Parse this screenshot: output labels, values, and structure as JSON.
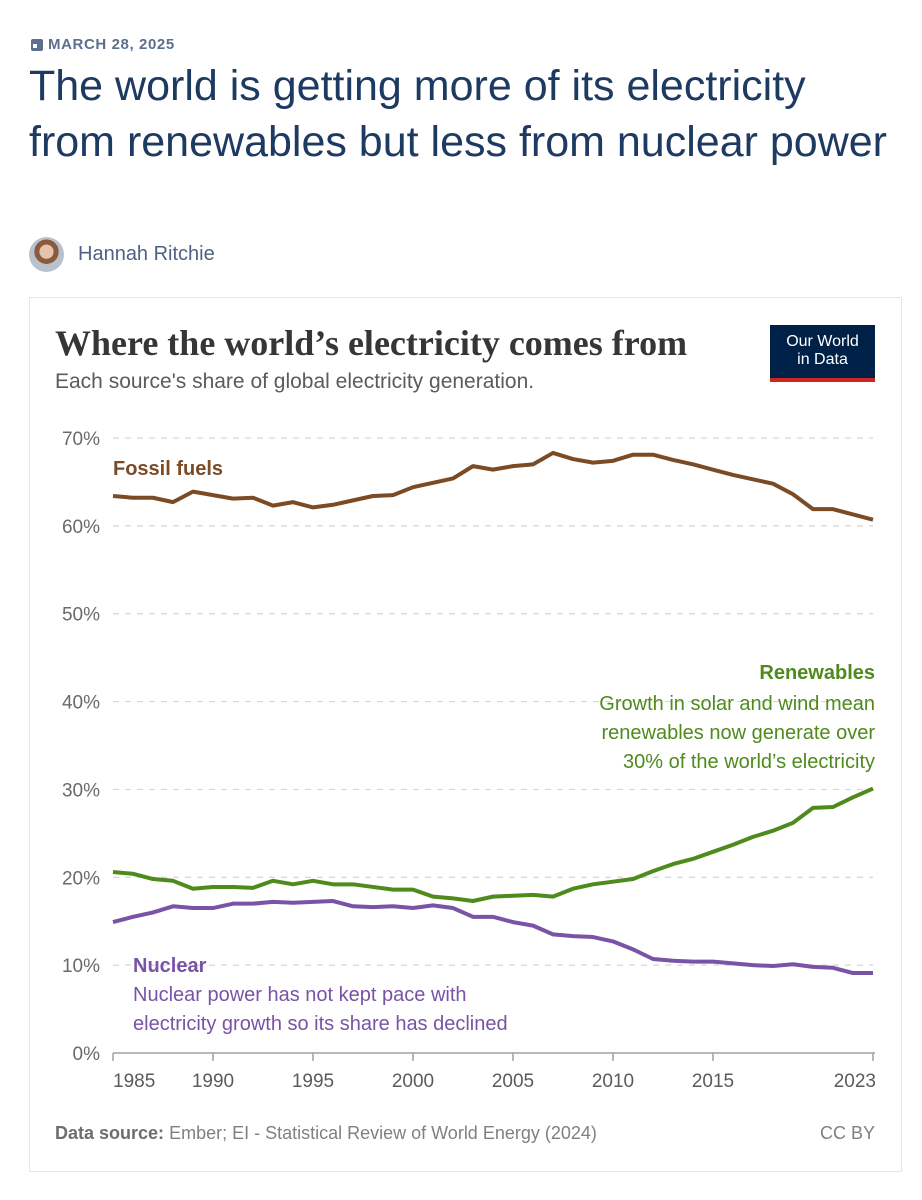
{
  "article": {
    "date": "MARCH 28, 2025",
    "title": "The world is getting more of its electricity from renewables but less from nuclear power",
    "author": "Hannah Ritchie"
  },
  "chart_data": {
    "type": "line",
    "title": "Where the world’s electricity comes from",
    "subtitle": "Each source's share of global electricity generation.",
    "logo": "Our World in Data",
    "x": [
      1985,
      1986,
      1987,
      1988,
      1989,
      1990,
      1991,
      1992,
      1993,
      1994,
      1995,
      1996,
      1997,
      1998,
      1999,
      2000,
      2001,
      2002,
      2003,
      2004,
      2005,
      2006,
      2007,
      2008,
      2009,
      2010,
      2011,
      2012,
      2013,
      2014,
      2015,
      2016,
      2017,
      2018,
      2019,
      2020,
      2021,
      2022,
      2023
    ],
    "xlim": [
      1985,
      2023
    ],
    "ylim": [
      0,
      70
    ],
    "y_ticks": [
      "0%",
      "10%",
      "20%",
      "30%",
      "40%",
      "50%",
      "60%",
      "70%"
    ],
    "x_ticks": [
      "1985",
      "1990",
      "1995",
      "2000",
      "2005",
      "2010",
      "2015",
      "2023"
    ],
    "grid": true,
    "series": [
      {
        "name": "Fossil fuels",
        "color": "#7b4b26",
        "values": [
          63.4,
          63.2,
          63.2,
          62.7,
          63.9,
          63.5,
          63.1,
          63.2,
          62.3,
          62.7,
          62.1,
          62.4,
          62.9,
          63.4,
          63.5,
          64.4,
          64.9,
          65.4,
          66.8,
          66.4,
          66.8,
          67.0,
          68.3,
          67.6,
          67.2,
          67.4,
          68.1,
          68.1,
          67.5,
          67.0,
          66.4,
          65.8,
          65.3,
          64.8,
          63.6,
          61.9,
          61.9,
          61.3,
          60.7
        ]
      },
      {
        "name": "Renewables",
        "color": "#4e8a1c",
        "annotation": [
          "Growth in solar and wind mean",
          "renewables now generate over",
          "30% of the world’s electricity"
        ],
        "values": [
          20.6,
          20.4,
          19.8,
          19.6,
          18.7,
          18.9,
          18.9,
          18.8,
          19.6,
          19.2,
          19.6,
          19.2,
          19.2,
          18.9,
          18.6,
          18.6,
          17.8,
          17.6,
          17.3,
          17.8,
          17.9,
          18.0,
          17.8,
          18.7,
          19.2,
          19.5,
          19.8,
          20.7,
          21.5,
          22.1,
          22.9,
          23.7,
          24.6,
          25.3,
          26.2,
          27.9,
          28.0,
          29.1,
          30.1
        ]
      },
      {
        "name": "Nuclear",
        "color": "#7953a5",
        "annotation": [
          "Nuclear power has not kept pace with",
          "electricity growth so its share has declined"
        ],
        "values": [
          14.9,
          15.5,
          16.0,
          16.7,
          16.5,
          16.5,
          17.0,
          17.0,
          17.2,
          17.1,
          17.2,
          17.3,
          16.7,
          16.6,
          16.7,
          16.5,
          16.8,
          16.5,
          15.5,
          15.5,
          14.9,
          14.5,
          13.5,
          13.3,
          13.2,
          12.7,
          11.8,
          10.7,
          10.5,
          10.4,
          10.4,
          10.2,
          10.0,
          9.9,
          10.1,
          9.8,
          9.7,
          9.1,
          9.1
        ]
      }
    ]
  },
  "footer": {
    "source_label": "Data source:",
    "source": "Ember; EI - Statistical Review of World Energy (2024)",
    "license": "CC BY"
  }
}
